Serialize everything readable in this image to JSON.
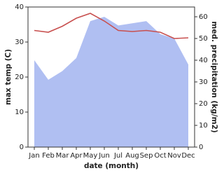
{
  "chart_data": {
    "type": "line-area",
    "x_label": "date (month)",
    "y_label": "max temp (C)",
    "y2_label": "med. precipitation (kg/m2)",
    "categories": [
      "Jan",
      "Feb",
      "Mar",
      "Apr",
      "May",
      "Jun",
      "Jul",
      "Aug",
      "Sep",
      "Oct",
      "Nov",
      "Dec"
    ],
    "series": [
      {
        "name": "max temp",
        "color": "#c8504f",
        "axis": "y",
        "values": [
          33.3,
          32.8,
          34.5,
          36.8,
          38.2,
          36,
          33.3,
          33,
          33.3,
          32.8,
          31,
          31.2
        ]
      },
      {
        "name": "med. precipitation",
        "color": "#b0bff2",
        "axis": "y2",
        "values": [
          40,
          31,
          35,
          41,
          58,
          60,
          56,
          57,
          58,
          52,
          50,
          38
        ]
      }
    ],
    "ylim": [
      0,
      40
    ],
    "yticks": [
      0,
      10,
      20,
      30,
      40
    ],
    "y2lim": [
      0,
      64.5
    ],
    "y2ticks": [
      0,
      10,
      20,
      30,
      40,
      50,
      60
    ]
  }
}
